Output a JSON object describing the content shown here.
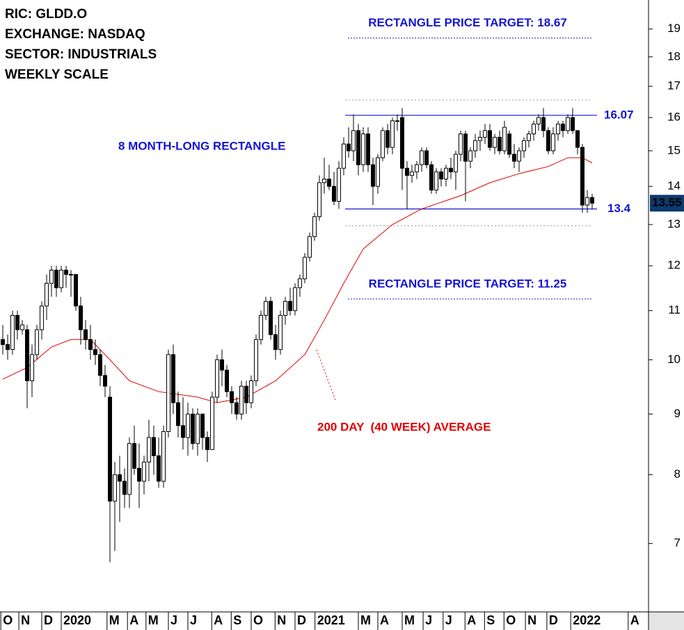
{
  "chart_data": {
    "type": "candlestick",
    "info": [
      "RIC: GLDD.O",
      "EXCHANGE: NASDAQ",
      "SECTOR: INDUSTRIALS",
      "WEEKLY SCALE"
    ],
    "log_scale": true,
    "xlim": [
      -0.571,
      132.571
    ],
    "ylim": [
      6.13,
      20.1
    ],
    "yticks": [
      7,
      8,
      9,
      10,
      11,
      12,
      13,
      14,
      15,
      16,
      17,
      18,
      19
    ],
    "xticks": [
      {
        "value": -0.4,
        "label": "O"
      },
      {
        "value": 3.3,
        "label": "N"
      },
      {
        "value": 8,
        "label": "D"
      },
      {
        "value": 12,
        "label": "2020"
      },
      {
        "value": 21.4,
        "label": "M"
      },
      {
        "value": 25.6,
        "label": "A"
      },
      {
        "value": 29.4,
        "label": "M"
      },
      {
        "value": 34,
        "label": "J"
      },
      {
        "value": 38,
        "label": "J"
      },
      {
        "value": 42.9,
        "label": "A"
      },
      {
        "value": 46.9,
        "label": "S"
      },
      {
        "value": 51,
        "label": "O"
      },
      {
        "value": 55.9,
        "label": "N"
      },
      {
        "value": 60,
        "label": "D"
      },
      {
        "value": 64.1,
        "label": "2021"
      },
      {
        "value": 73,
        "label": "M"
      },
      {
        "value": 77,
        "label": "A"
      },
      {
        "value": 82,
        "label": "M"
      },
      {
        "value": 86.3,
        "label": "J"
      },
      {
        "value": 90.4,
        "label": "J"
      },
      {
        "value": 94.9,
        "label": "A"
      },
      {
        "value": 98.9,
        "label": "S"
      },
      {
        "value": 102.9,
        "label": "O"
      },
      {
        "value": 107.3,
        "label": "N"
      },
      {
        "value": 111.7,
        "label": "D"
      },
      {
        "value": 116.6,
        "label": "2022"
      },
      {
        "value": 128.4,
        "label": "A"
      }
    ],
    "up_color": "#ffffff",
    "down_color": "#000000",
    "open": [
      10.4,
      10.3,
      10.2,
      10.9,
      10.6,
      10.6,
      9.6,
      10.1,
      10.6,
      11.1,
      11.6,
      11.9,
      11.5,
      11.9,
      11.8,
      11.8,
      11.1,
      10.6,
      10.4,
      10.2,
      10.1,
      9.7,
      9.3,
      7.6,
      8.0,
      7.9,
      7.7,
      8.5,
      8.1,
      7.9,
      8.2,
      8.6,
      8.3,
      7.9,
      8.7,
      10.1,
      9.2,
      8.8,
      8.6,
      9.0,
      8.5,
      9.0,
      8.6,
      8.4,
      9.3,
      10.0,
      9.8,
      9.4,
      9.2,
      9.0,
      9.5,
      9.2,
      9.6,
      10.4,
      10.9,
      11.2,
      10.5,
      10.2,
      10.9,
      11.2,
      11.0,
      11.5,
      11.7,
      12.2,
      12.7,
      13.2,
      14.1,
      14.2,
      14.0,
      13.6,
      14.5,
      15.2,
      15.0,
      15.6,
      14.6,
      15.5,
      14.6,
      14.0,
      14.8,
      15.6,
      15.1,
      15.9,
      16.0,
      14.5,
      14.3,
      14.4,
      14.6,
      15.0,
      14.6,
      13.9,
      14.4,
      14.2,
      14.5,
      14.4,
      14.9,
      15.5,
      14.7,
      15.0,
      15.3,
      15.4,
      15.6,
      15.1,
      15.4,
      15.0,
      15.5,
      14.9,
      14.7,
      15.0,
      15.3,
      15.5,
      15.8,
      16.0,
      15.6,
      15.0,
      15.5,
      15.8,
      15.6,
      16.0,
      15.6,
      15.1,
      13.5,
      13.7
    ],
    "high": [
      10.7,
      10.5,
      11.0,
      11.0,
      10.8,
      10.7,
      10.3,
      10.7,
      11.2,
      11.8,
      12.0,
      12.0,
      12.0,
      12.0,
      11.9,
      11.8,
      11.3,
      10.8,
      10.7,
      10.4,
      10.2,
      9.9,
      9.5,
      8.2,
      8.3,
      8.1,
      8.6,
      8.8,
      8.5,
      8.3,
      8.9,
      8.8,
      8.6,
      8.8,
      10.2,
      10.3,
      9.4,
      9.3,
      9.2,
      9.1,
      9.1,
      9.0,
      8.7,
      9.4,
      10.1,
      10.2,
      9.9,
      9.5,
      9.3,
      9.6,
      9.6,
      9.7,
      10.5,
      11.0,
      11.3,
      11.3,
      10.7,
      11.0,
      11.3,
      11.5,
      11.6,
      11.8,
      12.3,
      12.8,
      13.3,
      14.3,
      14.8,
      14.6,
      14.4,
      14.7,
      15.4,
      15.7,
      16.1,
      15.8,
      15.7,
      15.7,
      14.8,
      14.9,
      15.7,
      15.8,
      16.0,
      16.1,
      16.3,
      14.7,
      14.6,
      14.7,
      15.1,
      15.1,
      14.7,
      14.5,
      14.5,
      14.6,
      14.8,
      15.0,
      15.6,
      15.6,
      15.1,
      15.5,
      15.6,
      15.8,
      15.8,
      15.5,
      15.6,
      15.9,
      15.6,
      15.2,
      15.1,
      15.4,
      15.6,
      15.9,
      16.1,
      16.3,
      15.7,
      15.7,
      15.9,
      15.9,
      16.1,
      16.3,
      15.6,
      15.2,
      13.9,
      13.8
    ],
    "low": [
      10.1,
      10.0,
      10.1,
      10.4,
      10.5,
      9.1,
      9.3,
      10.0,
      10.4,
      10.8,
      11.3,
      11.3,
      11.4,
      11.5,
      11.3,
      11.0,
      10.3,
      10.2,
      10.0,
      9.9,
      9.5,
      9.3,
      6.75,
      6.9,
      7.3,
      7.5,
      7.5,
      8.0,
      7.5,
      7.7,
      7.9,
      8.0,
      7.8,
      7.8,
      8.6,
      9.0,
      8.6,
      8.4,
      8.3,
      8.4,
      8.3,
      8.4,
      8.2,
      8.4,
      9.2,
      9.5,
      9.3,
      9.0,
      8.9,
      8.9,
      9.0,
      9.1,
      9.5,
      10.3,
      10.8,
      10.4,
      10.0,
      10.1,
      10.7,
      10.9,
      10.9,
      11.3,
      11.6,
      12.1,
      12.6,
      13.1,
      13.8,
      13.9,
      13.5,
      13.4,
      14.3,
      14.8,
      14.7,
      14.3,
      14.4,
      14.4,
      13.5,
      13.8,
      14.7,
      14.9,
      14.9,
      15.6,
      13.9,
      13.4,
      14.1,
      14.2,
      14.4,
      14.5,
      13.8,
      13.8,
      14.0,
      14.0,
      14.2,
      13.9,
      14.7,
      13.6,
      14.5,
      14.8,
      15.0,
      15.2,
      15.0,
      14.9,
      14.9,
      14.9,
      14.8,
      14.5,
      14.4,
      14.8,
      15.1,
      15.3,
      15.6,
      15.4,
      14.9,
      14.9,
      15.3,
      15.4,
      15.5,
      15.5,
      14.9,
      13.3,
      13.3,
      13.4
    ],
    "close": [
      10.3,
      10.2,
      10.9,
      10.6,
      10.7,
      9.6,
      10.1,
      10.6,
      11.1,
      11.6,
      11.9,
      11.5,
      11.9,
      11.8,
      11.8,
      11.1,
      10.6,
      10.4,
      10.2,
      10.1,
      9.7,
      9.5,
      7.6,
      8.0,
      7.9,
      7.7,
      8.5,
      8.1,
      7.9,
      8.2,
      8.6,
      8.3,
      7.9,
      8.7,
      10.1,
      9.2,
      8.8,
      8.6,
      9.0,
      8.5,
      9.0,
      8.6,
      8.4,
      9.3,
      10.0,
      9.8,
      9.4,
      9.2,
      9.0,
      9.5,
      9.2,
      9.6,
      10.4,
      10.9,
      11.2,
      10.5,
      10.2,
      10.9,
      11.2,
      11.0,
      11.5,
      11.7,
      12.2,
      12.7,
      13.2,
      14.1,
      14.2,
      14.0,
      13.6,
      14.5,
      15.2,
      15.0,
      15.6,
      14.6,
      15.5,
      14.6,
      14.0,
      14.8,
      15.6,
      15.1,
      15.9,
      15.9,
      14.5,
      14.3,
      14.4,
      14.6,
      15.0,
      14.6,
      13.9,
      14.4,
      14.2,
      14.5,
      14.4,
      14.9,
      15.5,
      14.7,
      15.0,
      15.3,
      15.4,
      15.6,
      15.1,
      15.4,
      15.0,
      15.7,
      14.9,
      14.7,
      15.0,
      15.3,
      15.5,
      15.8,
      16.0,
      15.6,
      15.0,
      15.5,
      15.8,
      15.6,
      16.0,
      15.6,
      15.1,
      13.5,
      13.7,
      13.55
    ],
    "moving_average": {
      "label": "200 DAY  (40 WEEK) AVERAGE",
      "color": "#e00000",
      "x": [
        0,
        5,
        10,
        14,
        18,
        22,
        26,
        32,
        40,
        44,
        50,
        56,
        62,
        66,
        70,
        74,
        80,
        86,
        94,
        100,
        106,
        112,
        116,
        119,
        121
      ],
      "values": [
        9.63,
        9.85,
        10.25,
        10.4,
        10.4,
        10.0,
        9.6,
        9.4,
        9.3,
        9.2,
        9.3,
        9.6,
        10.1,
        10.8,
        11.6,
        12.4,
        13.0,
        13.4,
        13.75,
        14.1,
        14.35,
        14.55,
        14.8,
        14.8,
        14.65
      ]
    },
    "rectangle": {
      "label": "8 MONTH-LONG RECTANGLE",
      "top": 16.07,
      "bottom": 13.4,
      "color": "#1414d2"
    },
    "targets": [
      {
        "value": 18.67,
        "label": "RECTANGLE PRICE TARGET: 18.67"
      },
      {
        "value": 11.25,
        "label": "RECTANGLE PRICE TARGET: 11.25"
      }
    ],
    "guides": [
      16.55,
      12.97
    ],
    "last_price_color": "#0d3a6e"
  }
}
